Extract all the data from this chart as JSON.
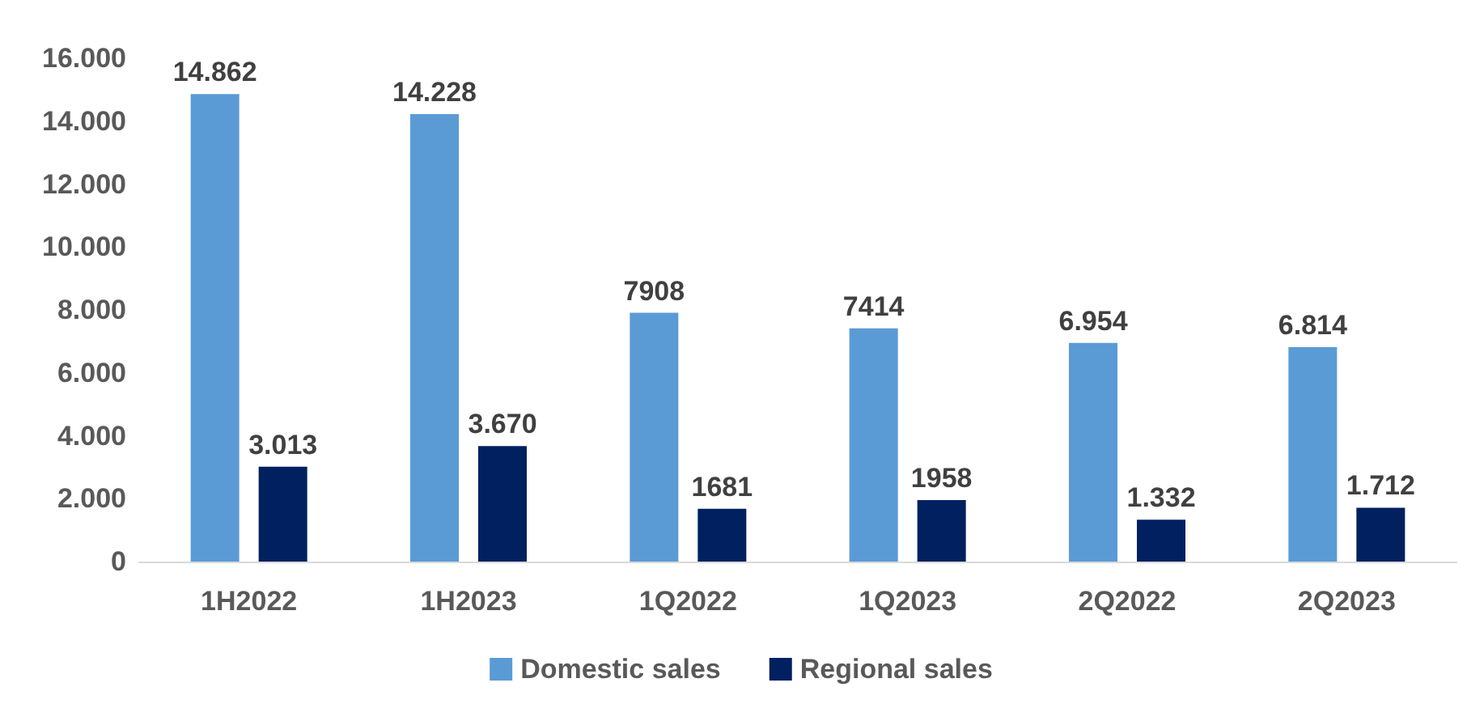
{
  "chart_data": {
    "type": "bar",
    "categories": [
      "1H2022",
      "1H2023",
      "1Q2022",
      "1Q2023",
      "2Q2022",
      "2Q2023"
    ],
    "series": [
      {
        "name": "Domestic sales",
        "color": "#5b9bd5",
        "values": [
          14862,
          14228,
          7908,
          7414,
          6954,
          6814
        ],
        "value_labels": [
          "14.862",
          "14.228",
          "7908",
          "7414",
          "6.954",
          "6.814"
        ]
      },
      {
        "name": "Regional sales",
        "color": "#002060",
        "values": [
          3013,
          3670,
          1681,
          1958,
          1332,
          1712
        ],
        "value_labels": [
          "3.013",
          "3.670",
          "1681",
          "1958",
          "1.332",
          "1.712"
        ]
      }
    ],
    "ylim": [
      0,
      16000
    ],
    "yticks": [
      {
        "value": 0,
        "label": "0"
      },
      {
        "value": 2000,
        "label": "2.000"
      },
      {
        "value": 4000,
        "label": "4.000"
      },
      {
        "value": 6000,
        "label": "6.000"
      },
      {
        "value": 8000,
        "label": "8.000"
      },
      {
        "value": 10000,
        "label": "10.000"
      },
      {
        "value": 12000,
        "label": "12.000"
      },
      {
        "value": 14000,
        "label": "14.000"
      },
      {
        "value": 16000,
        "label": "16.000"
      }
    ],
    "legend": "bottom",
    "grid": false
  }
}
